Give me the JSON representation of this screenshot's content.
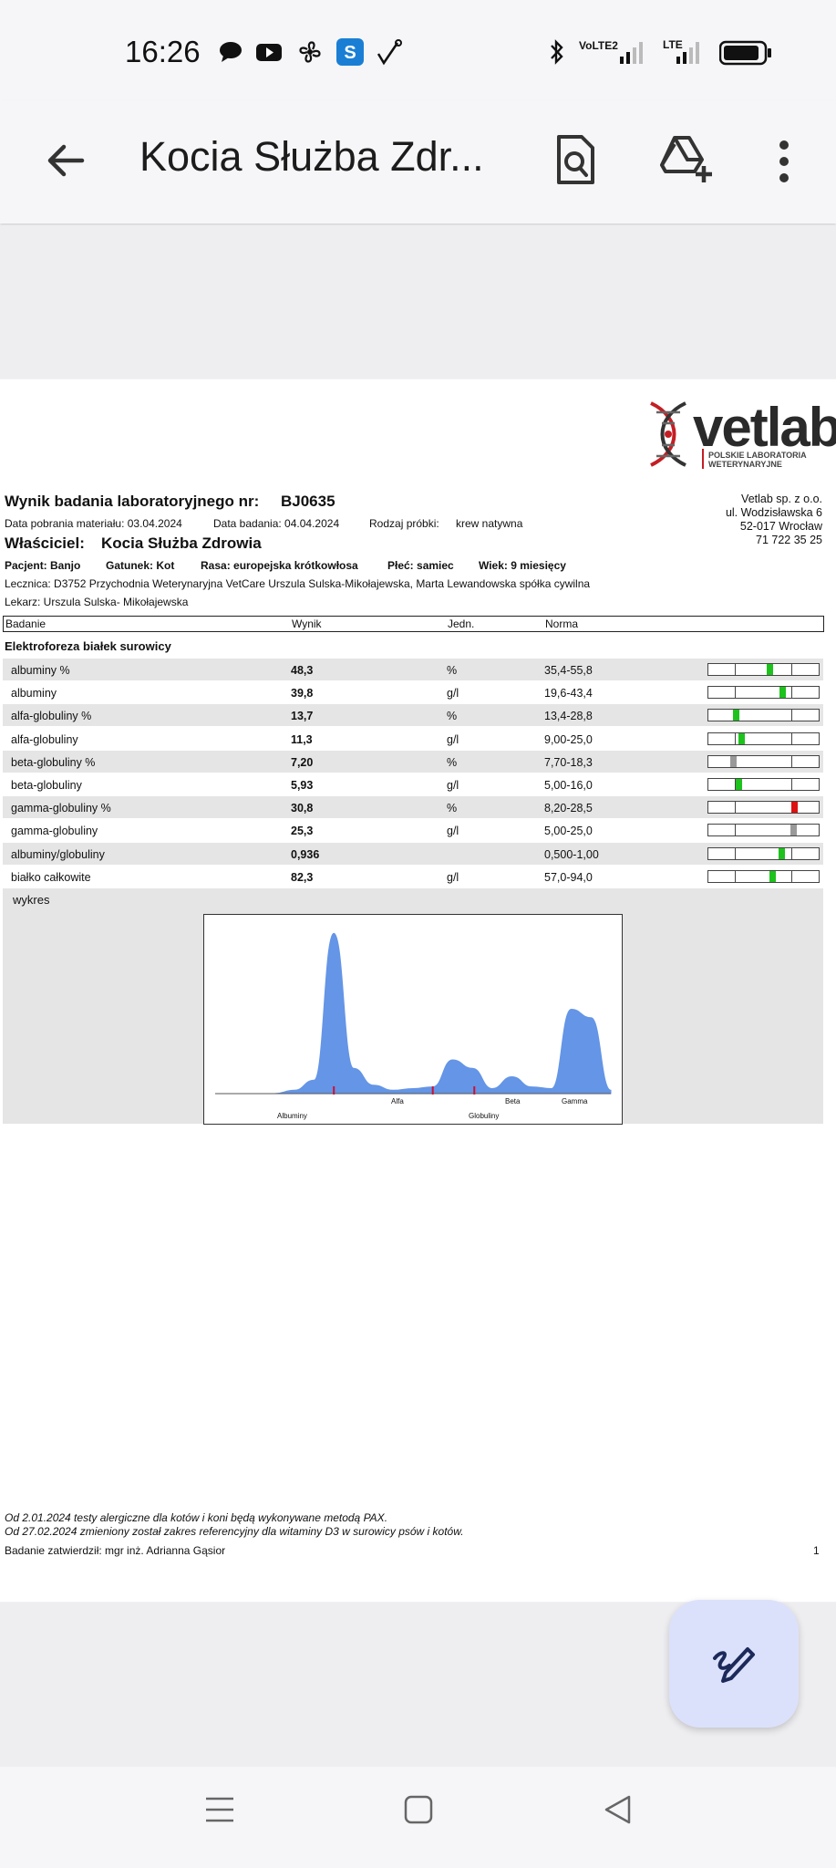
{
  "status_bar": {
    "time": "16:26",
    "network_label": "VoLTE2",
    "lte_label": "LTE"
  },
  "app_bar": {
    "title": "Kocia Służba Zdr..."
  },
  "document": {
    "logo_text": "vetlab",
    "logo_sub": "POLSKIE LABORATORIA WETERYNARYJNE",
    "lab_address": [
      "Vetlab sp. z o.o.",
      "ul. Wodzisławska 6",
      "52-017 Wrocław",
      "71 722 35 25"
    ],
    "title_label": "Wynik badania laboratoryjnego nr:",
    "title_number": "BJ0635",
    "collection_date": "Data pobrania materiału: 03.04.2024",
    "exam_date": "Data badania: 04.04.2024",
    "sample_type_label": "Rodzaj próbki:",
    "sample_type": "krew natywna",
    "owner_label": "Właściciel:",
    "owner_name": "Kocia Służba Zdrowia",
    "patient": "Pacjent: Banjo",
    "species": "Gatunek: Kot",
    "breed": "Rasa: europejska krótkowłosa",
    "sex": "Płeć: samiec",
    "age": "Wiek: 9 miesięcy",
    "clinic": "Lecznica: D3752 Przychodnia Weterynaryjna VetCare Urszula Sulska-Mikołajewska, Marta Lewandowska spółka cywilna",
    "doctor": "Lekarz: Urszula Sulska- Mikołajewska",
    "headers": {
      "test": "Badanie",
      "result": "Wynik",
      "unit": "Jedn.",
      "norm": "Norma"
    },
    "section_title": "Elektroforeza białek surowicy",
    "rows": [
      {
        "name": "albuminy %",
        "result": "48,3",
        "unit": "%",
        "norm": "35,4-55,8",
        "marker_color": "#1dc21d",
        "level": 0.55
      },
      {
        "name": "albuminy",
        "result": "39,8",
        "unit": "g/l",
        "norm": "19,6-43,4",
        "marker_color": "#1dc21d",
        "level": 0.67
      },
      {
        "name": "alfa-globuliny %",
        "result": "13,7",
        "unit": "%",
        "norm": "13,4-28,8",
        "marker_color": "#1dc21d",
        "level": 0.25
      },
      {
        "name": "alfa-globuliny",
        "result": "11,3",
        "unit": "g/l",
        "norm": "9,00-25,0",
        "marker_color": "#1dc21d",
        "level": 0.3
      },
      {
        "name": "beta-globuliny %",
        "result": "7,20",
        "unit": "%",
        "norm": "7,70-18,3",
        "marker_color": "#999999",
        "level": 0.22
      },
      {
        "name": "beta-globuliny",
        "result": "5,93",
        "unit": "g/l",
        "norm": "5,00-16,0",
        "marker_color": "#1dc21d",
        "level": 0.27
      },
      {
        "name": "gamma-globuliny %",
        "result": "30,8",
        "unit": "%",
        "norm": "8,20-28,5",
        "marker_color": "#dd1111",
        "level": 0.78
      },
      {
        "name": "gamma-globuliny",
        "result": "25,3",
        "unit": "g/l",
        "norm": "5,00-25,0",
        "marker_color": "#999999",
        "level": 0.77
      },
      {
        "name": "albuminy/globuliny",
        "result": "0,936",
        "unit": "",
        "norm": "0,500-1,00",
        "marker_color": "#1dc21d",
        "level": 0.66
      },
      {
        "name": "białko całkowite",
        "result": "82,3",
        "unit": "g/l",
        "norm": "57,0-94,0",
        "marker_color": "#1dc21d",
        "level": 0.58
      }
    ],
    "chart_title": "wykres",
    "chart_labels": {
      "albuminy": "Albuminy",
      "alfa": "Alfa",
      "beta": "Beta",
      "gamma": "Gamma",
      "globuliny": "Globuliny"
    },
    "footnote1": "Od 2.01.2024 testy alergiczne dla kotów i koni będą wykonywane metodą PAX.",
    "footnote2": "Od 27.02.2024 zmieniony został zakres referencyjny dla witaminy D3 w surowicy psów i kotów.",
    "approved_by": "Badanie zatwierdził: mgr inż. Adrianna Gąsior",
    "page_number": "1"
  },
  "chart_data": {
    "type": "area",
    "title": "wykres",
    "series": [
      {
        "values": [
          0,
          0,
          0,
          0,
          0.02,
          0.08,
          0.95,
          0.15,
          0.05,
          0.02,
          0.03,
          0.04,
          0.2,
          0.15,
          0.03,
          0.1,
          0.04,
          0.03,
          0.5,
          0.45,
          0.02
        ]
      }
    ],
    "x_labels": [
      "Albuminy",
      "Alfa",
      "Beta",
      "Gamma",
      "Globuliny"
    ]
  },
  "colors": {
    "chart_fill": "#6495e6",
    "divider": "#cc1133",
    "fab_bg": "#dce1fb"
  },
  "icons": [
    "back-arrow-icon",
    "find-in-page-icon",
    "drive-add-icon",
    "more-vert-icon",
    "edit-icon",
    "menu-icon",
    "home-square-icon",
    "back-triangle-icon"
  ]
}
